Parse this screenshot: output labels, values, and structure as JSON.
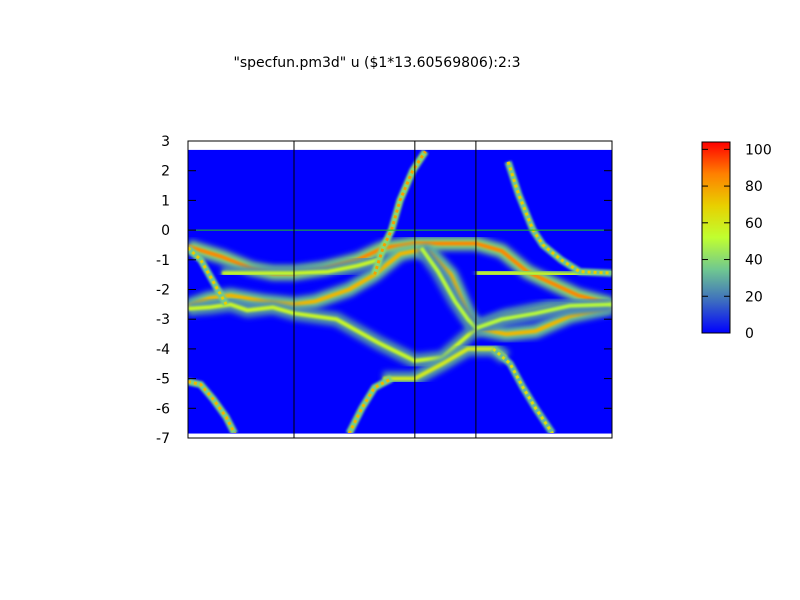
{
  "chart_data": {
    "type": "heatmap",
    "title": "\"specfun.pm3d\" u ($1*13.60569806):2:3",
    "xlabel": "",
    "ylabel": "",
    "xlim": [
      0,
      100
    ],
    "ylim": [
      -7,
      3
    ],
    "data_yrange": [
      -6.85,
      2.7
    ],
    "yticks": [
      3,
      2,
      1,
      0,
      -1,
      -2,
      -3,
      -4,
      -5,
      -6,
      -7
    ],
    "xticks": [],
    "vertical_lines_x": [
      25,
      53.5,
      67.9
    ],
    "horizontal_line_y": 0,
    "background_value": 0,
    "colorbar": {
      "range": [
        0,
        104
      ],
      "ticks": [
        0,
        20,
        40,
        60,
        80,
        100
      ],
      "palette": [
        "#0000ff",
        "#3c6cc0",
        "#70c890",
        "#c0ff30",
        "#e8d000",
        "#ff8000",
        "#ff0000"
      ]
    },
    "bands": [
      {
        "intensity": 85,
        "points": [
          [
            0,
            -0.55
          ],
          [
            8,
            -0.9
          ],
          [
            15,
            -1.3
          ],
          [
            20,
            -1.45
          ],
          [
            25,
            -1.45
          ],
          [
            32,
            -1.3
          ],
          [
            40,
            -1.0
          ],
          [
            46,
            -0.6
          ],
          [
            53.5,
            -0.45
          ],
          [
            60,
            -0.45
          ],
          [
            68,
            -0.45
          ],
          [
            74,
            -0.7
          ],
          [
            80,
            -1.4
          ],
          [
            86,
            -1.8
          ],
          [
            92,
            -2.2
          ],
          [
            100,
            -2.5
          ]
        ]
      },
      {
        "intensity": 75,
        "points": [
          [
            0,
            -2.55
          ],
          [
            5,
            -2.3
          ],
          [
            10,
            -2.2
          ],
          [
            18,
            -2.4
          ],
          [
            25,
            -2.5
          ],
          [
            30,
            -2.4
          ],
          [
            38,
            -2.0
          ],
          [
            44,
            -1.5
          ],
          [
            50,
            -0.8
          ],
          [
            53.5,
            -0.7
          ],
          [
            57,
            -0.75
          ],
          [
            62,
            -1.5
          ],
          [
            66,
            -2.8
          ],
          [
            68,
            -3.3
          ],
          [
            75,
            -3.5
          ],
          [
            82,
            -3.4
          ],
          [
            90,
            -2.9
          ],
          [
            100,
            -2.6
          ]
        ]
      },
      {
        "intensity": 55,
        "points": [
          [
            0,
            -2.65
          ],
          [
            5,
            -2.6
          ],
          [
            10,
            -2.5
          ],
          [
            14,
            -2.7
          ],
          [
            20,
            -2.6
          ],
          [
            25,
            -2.8
          ],
          [
            35,
            -3.0
          ],
          [
            45,
            -3.8
          ],
          [
            53.5,
            -4.4
          ],
          [
            60,
            -4.3
          ],
          [
            68,
            -3.3
          ],
          [
            75,
            -2.9
          ],
          [
            85,
            -2.6
          ],
          [
            100,
            -2.5
          ]
        ]
      },
      {
        "intensity": 55,
        "points": [
          [
            8,
            -1.45
          ],
          [
            15,
            -1.45
          ],
          [
            25,
            -1.45
          ],
          [
            33,
            -1.4
          ],
          [
            40,
            -1.2
          ],
          [
            45,
            -1.0
          ]
        ]
      },
      {
        "intensity": 60,
        "points": [
          [
            46,
            -5.0
          ],
          [
            53.5,
            -5.0
          ],
          [
            60,
            -4.5
          ],
          [
            66,
            -4.0
          ],
          [
            72,
            -4.0
          ],
          [
            75,
            -4.3
          ]
        ]
      },
      {
        "intensity": 50,
        "points": [
          [
            55,
            -0.6
          ],
          [
            59,
            -1.4
          ],
          [
            63,
            -2.4
          ],
          [
            66,
            -3.0
          ],
          [
            68,
            -3.3
          ]
        ]
      },
      {
        "intensity": 55,
        "points": [
          [
            68,
            -1.45
          ],
          [
            80,
            -1.45
          ],
          [
            90,
            -1.5
          ],
          [
            100,
            -1.4
          ]
        ]
      },
      {
        "intensity": 50,
        "points": [
          [
            68,
            -3.3
          ],
          [
            74,
            -3.0
          ],
          [
            82,
            -2.8
          ],
          [
            90,
            -2.55
          ],
          [
            100,
            -2.5
          ]
        ]
      }
    ],
    "steep_bands": [
      {
        "intensity": 70,
        "points": [
          [
            0,
            -0.6
          ],
          [
            3,
            -1.0
          ],
          [
            5,
            -1.5
          ],
          [
            7,
            -2.0
          ],
          [
            9,
            -2.5
          ]
        ]
      },
      {
        "intensity": 75,
        "points": [
          [
            0,
            -5.1
          ],
          [
            3,
            -5.2
          ],
          [
            6,
            -5.7
          ],
          [
            9,
            -6.3
          ],
          [
            11,
            -6.85
          ]
        ]
      },
      {
        "intensity": 75,
        "points": [
          [
            38,
            -6.85
          ],
          [
            41,
            -6.0
          ],
          [
            44,
            -5.3
          ],
          [
            48,
            -5.0
          ]
        ]
      },
      {
        "intensity": 80,
        "points": [
          [
            44,
            -1.5
          ],
          [
            46,
            -0.6
          ],
          [
            48,
            0
          ],
          [
            50,
            1.0
          ],
          [
            53,
            2.0
          ],
          [
            56,
            2.65
          ]
        ]
      },
      {
        "intensity": 70,
        "points": [
          [
            75.5,
            2.3
          ],
          [
            78,
            1.2
          ],
          [
            81.4,
            0
          ],
          [
            83.7,
            -0.5
          ],
          [
            88,
            -1.0
          ],
          [
            92.4,
            -1.4
          ],
          [
            100,
            -1.45
          ]
        ]
      },
      {
        "intensity": 65,
        "points": [
          [
            72,
            -4.0
          ],
          [
            76,
            -4.5
          ],
          [
            79,
            -5.3
          ],
          [
            82,
            -6.0
          ],
          [
            86,
            -6.85
          ]
        ]
      }
    ]
  }
}
